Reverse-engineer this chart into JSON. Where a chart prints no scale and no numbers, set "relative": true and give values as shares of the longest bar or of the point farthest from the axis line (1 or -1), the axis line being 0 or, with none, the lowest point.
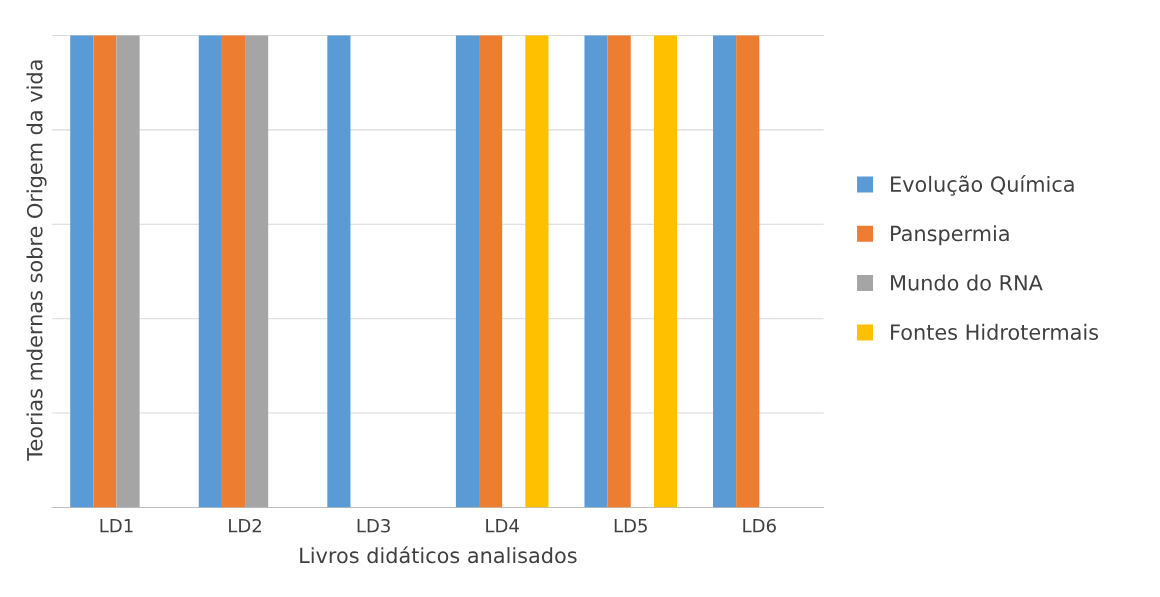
{
  "chart_data": {
    "type": "bar",
    "relative": true,
    "xlabel": "Livros didáticos analisados",
    "ylabel": "Teorias mdernas sobre Origem da vida",
    "categories": [
      "LD1",
      "LD2",
      "LD3",
      "LD4",
      "LD5",
      "LD6"
    ],
    "series": [
      {
        "name": "Evolução Química",
        "color": "#5b9bd5",
        "values": [
          1,
          1,
          1,
          1,
          1,
          1
        ]
      },
      {
        "name": "Panspermia",
        "color": "#ed7d31",
        "values": [
          1,
          1,
          null,
          1,
          1,
          1
        ]
      },
      {
        "name": "Mundo do RNA",
        "color": "#a5a5a5",
        "values": [
          1,
          1,
          null,
          null,
          null,
          null
        ]
      },
      {
        "name": "Fontes Hidrotermais",
        "color": "#ffc000",
        "values": [
          null,
          null,
          null,
          1,
          1,
          null
        ]
      }
    ],
    "grid": "y",
    "legend": "right"
  }
}
